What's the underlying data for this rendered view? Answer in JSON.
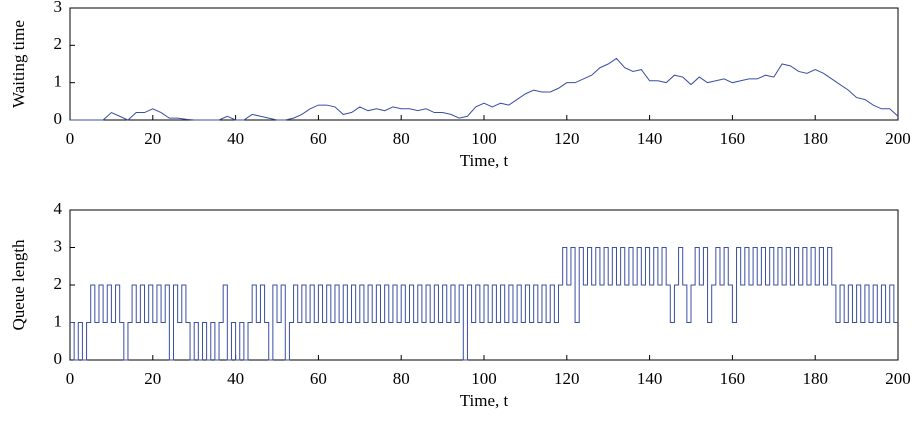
{
  "chart_data": [
    {
      "type": "line",
      "ylabel": "Waiting time",
      "xlabel": "Time, t",
      "color": "#3b4fa3",
      "xlim": [
        0,
        200
      ],
      "xticks": [
        0,
        20,
        40,
        60,
        80,
        100,
        120,
        140,
        160,
        180,
        200
      ],
      "ylim": [
        0,
        3
      ],
      "yticks": [
        0,
        1,
        2,
        3
      ],
      "x": [
        0,
        2,
        4,
        6,
        8,
        10,
        12,
        14,
        16,
        18,
        20,
        22,
        24,
        26,
        28,
        30,
        32,
        34,
        36,
        38,
        40,
        42,
        44,
        46,
        48,
        50,
        52,
        54,
        56,
        58,
        60,
        62,
        64,
        66,
        68,
        70,
        72,
        74,
        76,
        78,
        80,
        82,
        84,
        86,
        88,
        90,
        92,
        94,
        96,
        98,
        100,
        102,
        104,
        106,
        108,
        110,
        112,
        114,
        116,
        118,
        120,
        122,
        124,
        126,
        128,
        130,
        132,
        134,
        136,
        138,
        140,
        142,
        144,
        146,
        148,
        150,
        152,
        154,
        156,
        158,
        160,
        162,
        164,
        166,
        168,
        170,
        172,
        174,
        176,
        178,
        180,
        182,
        184,
        186,
        188,
        190,
        192,
        194,
        196,
        198,
        200
      ],
      "values": [
        0,
        0,
        0,
        0,
        0,
        0.2,
        0.1,
        0,
        0.2,
        0.2,
        0.3,
        0.2,
        0.05,
        0.05,
        0.02,
        0,
        0,
        0,
        0,
        0.1,
        0,
        0,
        0.15,
        0.1,
        0.05,
        0,
        0,
        0.05,
        0.15,
        0.3,
        0.4,
        0.4,
        0.35,
        0.15,
        0.2,
        0.35,
        0.25,
        0.3,
        0.25,
        0.35,
        0.3,
        0.3,
        0.25,
        0.3,
        0.2,
        0.2,
        0.15,
        0.05,
        0.1,
        0.35,
        0.45,
        0.35,
        0.45,
        0.4,
        0.55,
        0.7,
        0.8,
        0.75,
        0.75,
        0.85,
        1.0,
        1.0,
        1.1,
        1.2,
        1.4,
        1.5,
        1.65,
        1.4,
        1.3,
        1.35,
        1.05,
        1.05,
        1.0,
        1.2,
        1.15,
        0.95,
        1.15,
        1.0,
        1.05,
        1.1,
        1.0,
        1.05,
        1.1,
        1.1,
        1.2,
        1.15,
        1.5,
        1.45,
        1.3,
        1.25,
        1.35,
        1.25,
        1.1,
        0.95,
        0.8,
        0.6,
        0.55,
        0.4,
        0.3,
        0.3,
        0.1
      ]
    },
    {
      "type": "step",
      "ylabel": "Queue length",
      "xlabel": "Time, t",
      "color": "#3b4fa3",
      "xlim": [
        0,
        200
      ],
      "xticks": [
        0,
        20,
        40,
        60,
        80,
        100,
        120,
        140,
        160,
        180,
        200
      ],
      "ylim": [
        0,
        4
      ],
      "yticks": [
        0,
        1,
        2,
        3,
        4
      ],
      "x": [
        0,
        1,
        2,
        3,
        4,
        5,
        6,
        7,
        8,
        9,
        10,
        11,
        12,
        13,
        14,
        15,
        16,
        17,
        18,
        19,
        20,
        21,
        22,
        23,
        24,
        25,
        26,
        27,
        28,
        29,
        30,
        31,
        32,
        33,
        34,
        35,
        36,
        37,
        38,
        39,
        40,
        41,
        42,
        43,
        44,
        45,
        46,
        47,
        48,
        49,
        50,
        51,
        52,
        53,
        54,
        55,
        56,
        57,
        58,
        59,
        60,
        61,
        62,
        63,
        64,
        65,
        66,
        67,
        68,
        69,
        70,
        71,
        72,
        73,
        74,
        75,
        76,
        77,
        78,
        79,
        80,
        81,
        82,
        83,
        84,
        85,
        86,
        87,
        88,
        89,
        90,
        91,
        92,
        93,
        94,
        95,
        96,
        97,
        98,
        99,
        100,
        101,
        102,
        103,
        104,
        105,
        106,
        107,
        108,
        109,
        110,
        111,
        112,
        113,
        114,
        115,
        116,
        117,
        118,
        119,
        120,
        121,
        122,
        123,
        124,
        125,
        126,
        127,
        128,
        129,
        130,
        131,
        132,
        133,
        134,
        135,
        136,
        137,
        138,
        139,
        140,
        141,
        142,
        143,
        144,
        145,
        146,
        147,
        148,
        149,
        150,
        151,
        152,
        153,
        154,
        155,
        156,
        157,
        158,
        159,
        160,
        161,
        162,
        163,
        164,
        165,
        166,
        167,
        168,
        169,
        170,
        171,
        172,
        173,
        174,
        175,
        176,
        177,
        178,
        179,
        180,
        181,
        182,
        183,
        184,
        185,
        186,
        187,
        188,
        189,
        190,
        191,
        192,
        193,
        194,
        195,
        196,
        197,
        198,
        199
      ],
      "values": [
        1,
        0,
        1,
        0,
        1,
        2,
        1,
        2,
        1,
        2,
        1,
        2,
        1,
        0,
        1,
        2,
        1,
        2,
        1,
        2,
        1,
        2,
        1,
        2,
        0,
        2,
        1,
        2,
        1,
        0,
        1,
        0,
        1,
        0,
        1,
        0,
        1,
        2,
        0,
        1,
        0,
        1,
        0,
        1,
        2,
        1,
        2,
        1,
        0,
        2,
        1,
        2,
        0,
        1,
        2,
        1,
        2,
        1,
        2,
        1,
        2,
        1,
        2,
        1,
        2,
        1,
        2,
        1,
        2,
        1,
        2,
        1,
        2,
        1,
        2,
        1,
        2,
        1,
        2,
        1,
        2,
        1,
        2,
        1,
        2,
        1,
        2,
        1,
        2,
        1,
        2,
        1,
        2,
        1,
        2,
        0,
        2,
        1,
        2,
        1,
        2,
        1,
        2,
        1,
        2,
        1,
        2,
        1,
        2,
        1,
        2,
        1,
        2,
        1,
        2,
        1,
        2,
        1,
        2,
        3,
        2,
        3,
        1,
        3,
        2,
        3,
        2,
        3,
        2,
        3,
        2,
        3,
        2,
        3,
        2,
        3,
        2,
        3,
        2,
        3,
        2,
        3,
        2,
        3,
        2,
        1,
        2,
        3,
        2,
        1,
        2,
        3,
        2,
        3,
        1,
        2,
        3,
        2,
        3,
        2,
        1,
        3,
        2,
        3,
        2,
        3,
        2,
        3,
        2,
        3,
        2,
        3,
        2,
        3,
        2,
        3,
        2,
        3,
        2,
        3,
        2,
        3,
        2,
        3,
        2,
        1,
        2,
        1,
        2,
        1,
        2,
        1,
        2,
        1,
        2,
        1,
        2,
        1,
        2,
        1
      ]
    }
  ]
}
